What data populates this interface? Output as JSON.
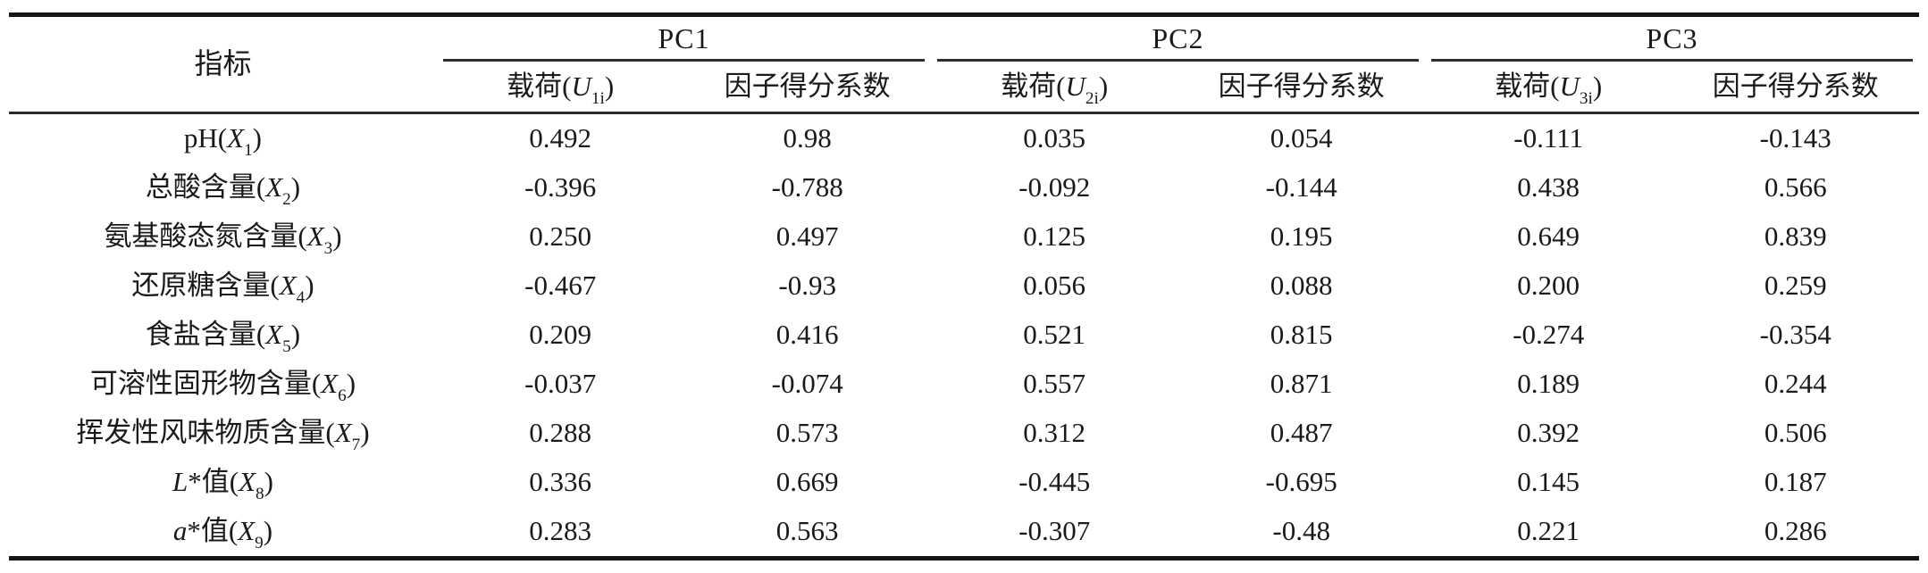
{
  "page": {
    "background": "#ffffff",
    "text_color": "#1a1a1a",
    "thick_rule_color": "#151515",
    "thin_rule_color": "#2a2a2a"
  },
  "table": {
    "indicator_header": "指标",
    "groups": [
      {
        "name": "PC1",
        "loading_segments": [
          {
            "t": "载荷(",
            "s": "p"
          },
          {
            "t": "U",
            "s": "v"
          },
          {
            "t": "1i",
            "s": "sub"
          },
          {
            "t": ")",
            "s": "p"
          }
        ],
        "score_label": "因子得分系数"
      },
      {
        "name": "PC2",
        "loading_segments": [
          {
            "t": "载荷(",
            "s": "p"
          },
          {
            "t": "U",
            "s": "v"
          },
          {
            "t": "2i",
            "s": "sub"
          },
          {
            "t": ")",
            "s": "p"
          }
        ],
        "score_label": "因子得分系数"
      },
      {
        "name": "PC3",
        "loading_segments": [
          {
            "t": "载荷(",
            "s": "p"
          },
          {
            "t": "U",
            "s": "v"
          },
          {
            "t": "3i",
            "s": "sub"
          },
          {
            "t": ")",
            "s": "p"
          }
        ],
        "score_label": "因子得分系数"
      }
    ],
    "rows": [
      {
        "label": [
          {
            "t": "pH(",
            "s": "p"
          },
          {
            "t": "X",
            "s": "v"
          },
          {
            "t": "1",
            "s": "sub"
          },
          {
            "t": ")",
            "s": "p"
          }
        ],
        "values": [
          "0.492",
          "0.98",
          "0.035",
          "0.054",
          "-0.111",
          "-0.143"
        ]
      },
      {
        "label": [
          {
            "t": "总酸含量(",
            "s": "p"
          },
          {
            "t": "X",
            "s": "v"
          },
          {
            "t": "2",
            "s": "sub"
          },
          {
            "t": ")",
            "s": "p"
          }
        ],
        "values": [
          "-0.396",
          "-0.788",
          "-0.092",
          "-0.144",
          "0.438",
          "0.566"
        ]
      },
      {
        "label": [
          {
            "t": "氨基酸态氮含量(",
            "s": "p"
          },
          {
            "t": "X",
            "s": "v"
          },
          {
            "t": "3",
            "s": "sub"
          },
          {
            "t": ")",
            "s": "p"
          }
        ],
        "values": [
          "0.250",
          "0.497",
          "0.125",
          "0.195",
          "0.649",
          "0.839"
        ]
      },
      {
        "label": [
          {
            "t": "还原糖含量(",
            "s": "p"
          },
          {
            "t": "X",
            "s": "v"
          },
          {
            "t": "4",
            "s": "sub"
          },
          {
            "t": ")",
            "s": "p"
          }
        ],
        "values": [
          "-0.467",
          "-0.93",
          "0.056",
          "0.088",
          "0.200",
          "0.259"
        ]
      },
      {
        "label": [
          {
            "t": "食盐含量(",
            "s": "p"
          },
          {
            "t": "X",
            "s": "v"
          },
          {
            "t": "5",
            "s": "sub"
          },
          {
            "t": ")",
            "s": "p"
          }
        ],
        "values": [
          "0.209",
          "0.416",
          "0.521",
          "0.815",
          "-0.274",
          "-0.354"
        ]
      },
      {
        "label": [
          {
            "t": "可溶性固形物含量(",
            "s": "p"
          },
          {
            "t": "X",
            "s": "v"
          },
          {
            "t": "6",
            "s": "sub"
          },
          {
            "t": ")",
            "s": "p"
          }
        ],
        "values": [
          "-0.037",
          "-0.074",
          "0.557",
          "0.871",
          "0.189",
          "0.244"
        ]
      },
      {
        "label": [
          {
            "t": "挥发性风味物质含量(",
            "s": "p"
          },
          {
            "t": "X",
            "s": "v"
          },
          {
            "t": "7",
            "s": "sub"
          },
          {
            "t": ")",
            "s": "p"
          }
        ],
        "values": [
          "0.288",
          "0.573",
          "0.312",
          "0.487",
          "0.392",
          "0.506"
        ]
      },
      {
        "label": [
          {
            "t": "L",
            "s": "v"
          },
          {
            "t": "*值(",
            "s": "p"
          },
          {
            "t": "X",
            "s": "v"
          },
          {
            "t": "8",
            "s": "sub"
          },
          {
            "t": ")",
            "s": "p"
          }
        ],
        "values": [
          "0.336",
          "0.669",
          "-0.445",
          "-0.695",
          "0.145",
          "0.187"
        ]
      },
      {
        "label": [
          {
            "t": "a",
            "s": "v"
          },
          {
            "t": "*值(",
            "s": "p"
          },
          {
            "t": "X",
            "s": "v"
          },
          {
            "t": "9",
            "s": "sub"
          },
          {
            "t": ")",
            "s": "p"
          }
        ],
        "values": [
          "0.283",
          "0.563",
          "-0.307",
          "-0.48",
          "0.221",
          "0.286"
        ]
      }
    ]
  }
}
